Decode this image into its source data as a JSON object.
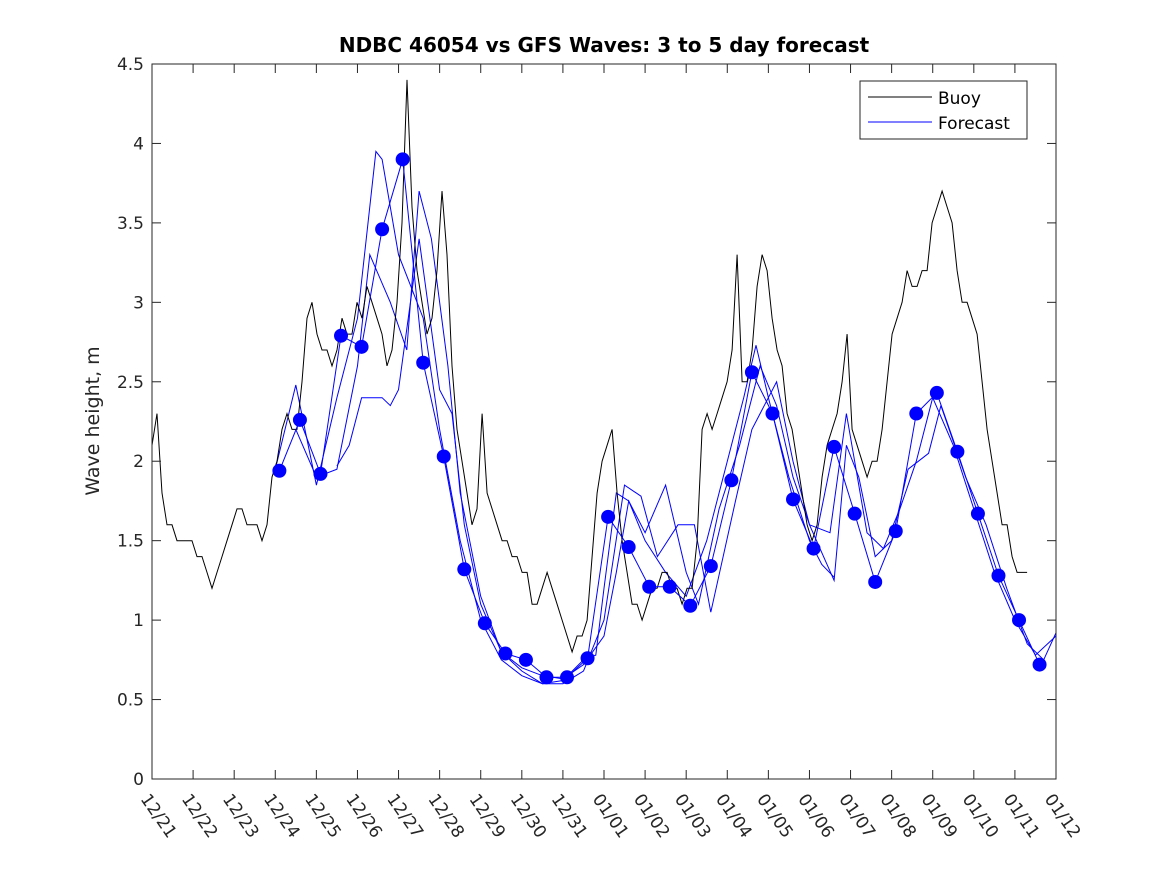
{
  "chart_data": {
    "type": "line",
    "title": "NDBC 46054 vs GFS Waves: 3 to 5 day forecast",
    "xlabel": "",
    "ylabel": "Wave height, m",
    "x_units": "days since 12/21",
    "xlim": [
      0,
      22
    ],
    "ylim": [
      0,
      4.5
    ],
    "x_ticks": [
      0,
      1,
      2,
      3,
      4,
      5,
      6,
      7,
      8,
      9,
      10,
      11,
      12,
      13,
      14,
      15,
      16,
      17,
      18,
      19,
      20,
      21,
      22
    ],
    "x_tick_labels": [
      "12/21",
      "12/22",
      "12/23",
      "12/24",
      "12/25",
      "12/26",
      "12/27",
      "12/28",
      "12/29",
      "12/30",
      "12/31",
      "01/01",
      "01/02",
      "01/03",
      "01/04",
      "01/05",
      "01/06",
      "01/07",
      "01/08",
      "01/09",
      "01/10",
      "01/11",
      "01/12"
    ],
    "y_ticks": [
      0,
      0.5,
      1,
      1.5,
      2,
      2.5,
      3,
      3.5,
      4,
      4.5
    ],
    "y_tick_labels": [
      "0",
      "0.5",
      "1",
      "1.5",
      "2",
      "2.5",
      "3",
      "3.5",
      "4",
      "4.5"
    ],
    "grid": false,
    "legend": {
      "placement": "top-right",
      "entries": [
        "Buoy",
        "Forecast"
      ]
    },
    "colors": {
      "buoy": "#000000",
      "forecast": "#0000ff"
    },
    "buoy": {
      "name": "Buoy",
      "start_day": 0,
      "step_days": 0.1217,
      "values": [
        2.1,
        2.3,
        1.8,
        1.6,
        1.6,
        1.5,
        1.5,
        1.5,
        1.5,
        1.4,
        1.4,
        1.3,
        1.2,
        1.3,
        1.4,
        1.5,
        1.6,
        1.7,
        1.7,
        1.6,
        1.6,
        1.6,
        1.5,
        1.6,
        1.9,
        2.0,
        2.2,
        2.3,
        2.2,
        2.2,
        2.5,
        2.9,
        3.0,
        2.8,
        2.7,
        2.7,
        2.6,
        2.7,
        2.9,
        2.8,
        2.8,
        3.0,
        2.9,
        3.1,
        3.0,
        2.9,
        2.8,
        2.6,
        2.7,
        3.0,
        3.5,
        4.4,
        3.6,
        3.2,
        3.0,
        2.8,
        2.9,
        3.2,
        3.7,
        3.3,
        2.6,
        2.2,
        2.0,
        1.8,
        1.6,
        1.7,
        2.3,
        1.8,
        1.7,
        1.6,
        1.5,
        1.5,
        1.4,
        1.4,
        1.3,
        1.3,
        1.1,
        1.1,
        1.2,
        1.3,
        1.2,
        1.1,
        1.0,
        0.9,
        0.8,
        0.9,
        0.9,
        1.0,
        1.4,
        1.8,
        2.0,
        2.1,
        2.2,
        1.8,
        1.5,
        1.3,
        1.1,
        1.1,
        1.0,
        1.1,
        1.2,
        1.2,
        1.3,
        1.3,
        1.2,
        1.2,
        1.1,
        1.2,
        1.2,
        1.5,
        2.2,
        2.3,
        2.2,
        2.3,
        2.4,
        2.5,
        2.7,
        3.3,
        2.5,
        2.5,
        2.7,
        3.1,
        3.3,
        3.2,
        2.9,
        2.7,
        2.6,
        2.3,
        2.2,
        2.0,
        1.8,
        1.6,
        1.5,
        1.6,
        1.9,
        2.1,
        2.2,
        2.3,
        2.5,
        2.8,
        2.2,
        2.1,
        2.0,
        1.9,
        2.0,
        2.0,
        2.2,
        2.5,
        2.8,
        2.9,
        3.0,
        3.2,
        3.1,
        3.1,
        3.2,
        3.2,
        3.5,
        3.6,
        3.7,
        3.6,
        3.5,
        3.2,
        3.0,
        3.0,
        2.9,
        2.8,
        2.5,
        2.2,
        2.0,
        1.8,
        1.6,
        1.6,
        1.4,
        1.3,
        1.3,
        1.3
      ]
    },
    "forecast_points": {
      "name": "Forecast",
      "start_day": 3.1,
      "step_days": 0.5,
      "values": [
        1.94,
        2.26,
        1.92,
        2.79,
        2.72,
        3.46,
        3.9,
        2.62,
        2.03,
        1.32,
        0.98,
        0.79,
        0.75,
        0.64,
        0.64,
        0.76,
        1.65,
        1.46,
        1.21,
        1.21,
        1.09,
        1.34,
        1.88,
        2.56,
        2.3,
        1.76,
        1.45,
        2.09,
        1.67,
        1.24,
        1.56,
        2.3,
        2.43,
        2.06,
        1.67,
        1.28,
        1.0,
        0.72
      ]
    },
    "forecast_runs": [
      [
        [
          3.0,
          1.95
        ],
        [
          3.5,
          2.48
        ],
        [
          4.0,
          1.85
        ],
        [
          4.5,
          2.4
        ],
        [
          5.0,
          2.9
        ],
        [
          5.45,
          3.95
        ],
        [
          5.6,
          3.9
        ],
        [
          6.0,
          3.3
        ],
        [
          6.3,
          3.1
        ],
        [
          6.6,
          2.9
        ],
        [
          7.0,
          2.2
        ],
        [
          7.5,
          1.5
        ],
        [
          8.0,
          1.0
        ],
        [
          8.5,
          0.75
        ],
        [
          9.0,
          0.65
        ],
        [
          9.5,
          0.6
        ],
        [
          10.0,
          0.62
        ],
        [
          10.5,
          0.75
        ],
        [
          10.8,
          0.78
        ],
        [
          11.0,
          1.2
        ],
        [
          11.3,
          1.8
        ],
        [
          11.6,
          1.75
        ],
        [
          12.0,
          1.5
        ],
        [
          12.5,
          1.3
        ],
        [
          13.0,
          1.15
        ],
        [
          13.5,
          1.5
        ],
        [
          14.0,
          2.0
        ],
        [
          14.4,
          2.4
        ],
        [
          14.7,
          2.73
        ],
        [
          15.0,
          2.4
        ],
        [
          15.5,
          1.9
        ],
        [
          16.0,
          1.5
        ],
        [
          16.3,
          1.35
        ],
        [
          16.6,
          1.27
        ]
      ],
      [
        [
          3.5,
          2.2
        ],
        [
          4.0,
          1.9
        ],
        [
          4.5,
          1.95
        ],
        [
          5.0,
          2.6
        ],
        [
          5.3,
          3.3
        ],
        [
          5.8,
          3.0
        ],
        [
          6.2,
          2.7
        ],
        [
          6.5,
          3.7
        ],
        [
          6.8,
          3.4
        ],
        [
          7.2,
          2.6
        ],
        [
          7.5,
          1.8
        ],
        [
          8.0,
          1.15
        ],
        [
          8.5,
          0.8
        ],
        [
          9.0,
          0.7
        ],
        [
          9.5,
          0.65
        ],
        [
          10.0,
          0.63
        ],
        [
          10.5,
          0.72
        ],
        [
          11.0,
          0.9
        ],
        [
          11.3,
          1.3
        ],
        [
          11.6,
          1.75
        ],
        [
          12.0,
          1.55
        ],
        [
          12.5,
          1.85
        ],
        [
          13.0,
          1.3
        ],
        [
          13.3,
          1.1
        ],
        [
          13.8,
          1.7
        ],
        [
          14.3,
          2.1
        ],
        [
          14.8,
          2.6
        ],
        [
          15.2,
          2.35
        ],
        [
          15.6,
          1.9
        ],
        [
          16.0,
          1.6
        ],
        [
          16.5,
          1.55
        ],
        [
          16.9,
          2.3
        ],
        [
          17.4,
          1.55
        ],
        [
          17.8,
          1.45
        ],
        [
          18.2,
          1.7
        ],
        [
          18.6,
          2.0
        ],
        [
          19.0,
          2.4
        ],
        [
          19.5,
          2.1
        ],
        [
          20.0,
          1.7
        ],
        [
          20.5,
          1.3
        ],
        [
          21.0,
          1.0
        ],
        [
          21.5,
          0.78
        ],
        [
          22.0,
          0.9
        ]
      ],
      [
        [
          4.5,
          1.97
        ],
        [
          4.8,
          2.1
        ],
        [
          5.1,
          2.4
        ],
        [
          5.6,
          2.4
        ],
        [
          5.8,
          2.35
        ],
        [
          6.0,
          2.45
        ],
        [
          6.5,
          3.4
        ],
        [
          7.0,
          2.45
        ],
        [
          7.3,
          2.3
        ],
        [
          7.6,
          1.6
        ],
        [
          8.0,
          1.1
        ],
        [
          8.5,
          0.8
        ],
        [
          9.0,
          0.68
        ],
        [
          9.5,
          0.6
        ],
        [
          10.0,
          0.6
        ],
        [
          10.5,
          0.68
        ],
        [
          11.0,
          1.0
        ],
        [
          11.5,
          1.85
        ],
        [
          11.9,
          1.78
        ],
        [
          12.3,
          1.4
        ],
        [
          12.8,
          1.6
        ],
        [
          13.2,
          1.6
        ],
        [
          13.6,
          1.05
        ],
        [
          14.2,
          1.75
        ],
        [
          14.6,
          2.2
        ],
        [
          15.2,
          2.5
        ],
        [
          15.6,
          2.0
        ],
        [
          16.0,
          1.6
        ],
        [
          16.6,
          1.25
        ],
        [
          16.9,
          2.1
        ],
        [
          17.2,
          1.9
        ],
        [
          17.6,
          1.4
        ],
        [
          18.0,
          1.5
        ],
        [
          18.4,
          1.95
        ],
        [
          18.9,
          2.05
        ],
        [
          19.2,
          2.35
        ],
        [
          19.8,
          1.9
        ],
        [
          20.3,
          1.6
        ],
        [
          20.8,
          1.2
        ],
        [
          21.3,
          0.85
        ],
        [
          21.7,
          0.75
        ],
        [
          22.0,
          0.92
        ]
      ]
    ]
  }
}
